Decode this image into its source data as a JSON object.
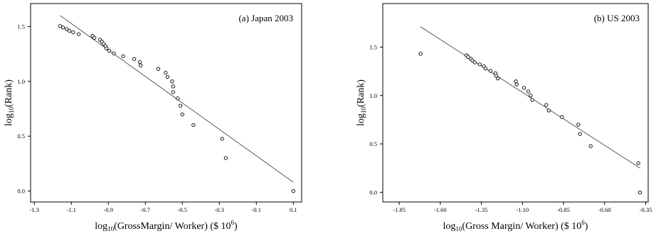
{
  "chart_data": [
    {
      "type": "scatter",
      "title": "(a) Japan 2003",
      "xlabel": "log10(GrossMargin/ Worker) ($ 10^6)",
      "ylabel": "log10(Rank)",
      "xlabel_parts": {
        "pre": "log",
        "sub": "10",
        "mid": "(GrossMargin/ Worker) ($ 10",
        "sup": "6",
        "post": ")"
      },
      "ylabel_parts": {
        "pre": "log",
        "sub": "10",
        "post": "(Rank)"
      },
      "x_ticks": [
        -1.3,
        -1.1,
        -0.9,
        -0.7,
        -0.5,
        -0.3,
        -0.1,
        0.1
      ],
      "x_tick_labels": [
        "-1.3",
        "-1.1",
        "-0.9",
        "-0.7",
        "-0.5",
        "-0.3",
        "-0.1",
        "0.1"
      ],
      "y_ticks": [
        0.0,
        0.5,
        1.0,
        1.5
      ],
      "y_tick_labels": [
        "0.0",
        "0.5",
        "1.0",
        "1.5"
      ],
      "xlim": [
        -1.32,
        0.145
      ],
      "ylim": [
        -0.1,
        1.71
      ],
      "grid": false,
      "points": [
        [
          -1.16,
          1.505
        ],
        [
          -1.145,
          1.491
        ],
        [
          -1.125,
          1.477
        ],
        [
          -1.11,
          1.462
        ],
        [
          -1.09,
          1.447
        ],
        [
          -1.06,
          1.431
        ],
        [
          -0.985,
          1.415
        ],
        [
          -0.975,
          1.398
        ],
        [
          -0.945,
          1.38
        ],
        [
          -0.935,
          1.362
        ],
        [
          -0.925,
          1.342
        ],
        [
          -0.915,
          1.322
        ],
        [
          -0.91,
          1.301
        ],
        [
          -0.895,
          1.279
        ],
        [
          -0.87,
          1.255
        ],
        [
          -0.82,
          1.23
        ],
        [
          -0.76,
          1.204
        ],
        [
          -0.73,
          1.176
        ],
        [
          -0.725,
          1.146
        ],
        [
          -0.63,
          1.114
        ],
        [
          -0.59,
          1.079
        ],
        [
          -0.58,
          1.041
        ],
        [
          -0.555,
          1.0
        ],
        [
          -0.55,
          0.954
        ],
        [
          -0.55,
          0.903
        ],
        [
          -0.525,
          0.845
        ],
        [
          -0.51,
          0.778
        ],
        [
          -0.5,
          0.699
        ],
        [
          -0.44,
          0.602
        ],
        [
          -0.285,
          0.477
        ],
        [
          -0.265,
          0.301
        ],
        [
          0.1,
          0.0
        ]
      ],
      "fit_line": [
        [
          -1.16,
          1.6
        ],
        [
          0.1,
          0.08
        ]
      ]
    },
    {
      "type": "scatter",
      "title": "(b) US 2003",
      "xlabel": "log10(Gross Margin/ Worker) ($ 10^6)",
      "ylabel": "log10(Rank)",
      "xlabel_parts": {
        "pre": "log",
        "sub": "10",
        "mid": "(Gross Margin/ Worker) ($ 10",
        "sup": "6",
        "post": ")"
      },
      "ylabel_parts": {
        "pre": "log",
        "sub": "10",
        "post": "(Rank)"
      },
      "x_ticks": [
        -1.85,
        -1.6,
        -1.35,
        -1.1,
        -0.85,
        -0.6,
        -0.35
      ],
      "x_tick_labels": [
        "-1.85",
        "-1.60",
        "-1.35",
        "-1.10",
        "-0.85",
        "-0.60",
        "-0.35"
      ],
      "y_ticks": [
        0.0,
        0.5,
        1.0,
        1.5
      ],
      "y_tick_labels": [
        "0.0",
        "0.5",
        "1.0",
        "1.5"
      ],
      "xlim": [
        -1.95,
        -0.335
      ],
      "ylim": [
        -0.1,
        1.95
      ],
      "grid": false,
      "points": [
        [
          -1.72,
          1.431
        ],
        [
          -1.44,
          1.415
        ],
        [
          -1.43,
          1.398
        ],
        [
          -1.415,
          1.38
        ],
        [
          -1.405,
          1.362
        ],
        [
          -1.39,
          1.342
        ],
        [
          -1.36,
          1.322
        ],
        [
          -1.335,
          1.301
        ],
        [
          -1.325,
          1.279
        ],
        [
          -1.295,
          1.255
        ],
        [
          -1.265,
          1.23
        ],
        [
          -1.26,
          1.204
        ],
        [
          -1.25,
          1.176
        ],
        [
          -1.14,
          1.146
        ],
        [
          -1.135,
          1.114
        ],
        [
          -1.09,
          1.079
        ],
        [
          -1.065,
          1.041
        ],
        [
          -1.05,
          1.0
        ],
        [
          -1.04,
          0.954
        ],
        [
          -0.955,
          0.903
        ],
        [
          -0.94,
          0.845
        ],
        [
          -0.86,
          0.778
        ],
        [
          -0.76,
          0.699
        ],
        [
          -0.75,
          0.602
        ],
        [
          -0.685,
          0.477
        ],
        [
          -0.395,
          0.301
        ],
        [
          -0.385,
          0.0
        ]
      ],
      "fit_line": [
        [
          -1.72,
          1.71
        ],
        [
          -0.385,
          0.25
        ]
      ]
    }
  ]
}
